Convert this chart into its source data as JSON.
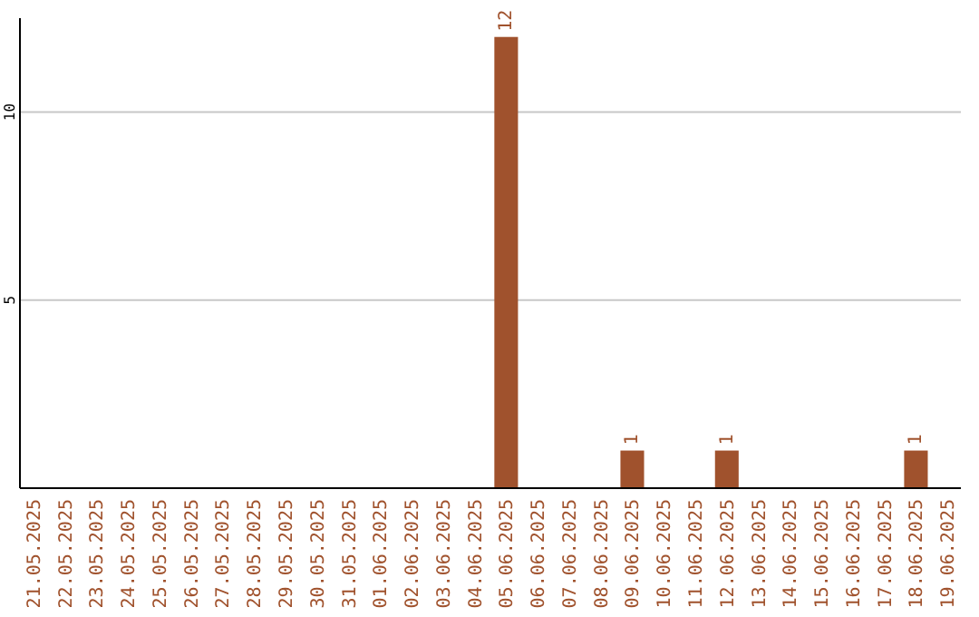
{
  "chart_data": {
    "type": "bar",
    "categories": [
      "21.05.2025",
      "22.05.2025",
      "23.05.2025",
      "24.05.2025",
      "25.05.2025",
      "26.05.2025",
      "27.05.2025",
      "28.05.2025",
      "29.05.2025",
      "30.05.2025",
      "31.05.2025",
      "01.06.2025",
      "02.06.2025",
      "03.06.2025",
      "04.06.2025",
      "05.06.2025",
      "06.06.2025",
      "07.06.2025",
      "08.06.2025",
      "09.06.2025",
      "10.06.2025",
      "11.06.2025",
      "12.06.2025",
      "13.06.2025",
      "14.06.2025",
      "15.06.2025",
      "16.06.2025",
      "17.06.2025",
      "18.06.2025",
      "19.06.2025"
    ],
    "values": [
      0,
      0,
      0,
      0,
      0,
      0,
      0,
      0,
      0,
      0,
      0,
      0,
      0,
      0,
      0,
      12,
      0,
      0,
      0,
      1,
      0,
      0,
      1,
      0,
      0,
      0,
      0,
      0,
      1,
      0
    ],
    "value_labels": [
      null,
      null,
      null,
      null,
      null,
      null,
      null,
      null,
      null,
      null,
      null,
      null,
      null,
      null,
      null,
      "12",
      null,
      null,
      null,
      "1",
      null,
      null,
      "1",
      null,
      null,
      null,
      null,
      null,
      "1",
      null
    ],
    "color": "#a0522d",
    "ylim": [
      0,
      12.5
    ],
    "yticks": [
      5,
      10
    ],
    "grid": "y"
  }
}
